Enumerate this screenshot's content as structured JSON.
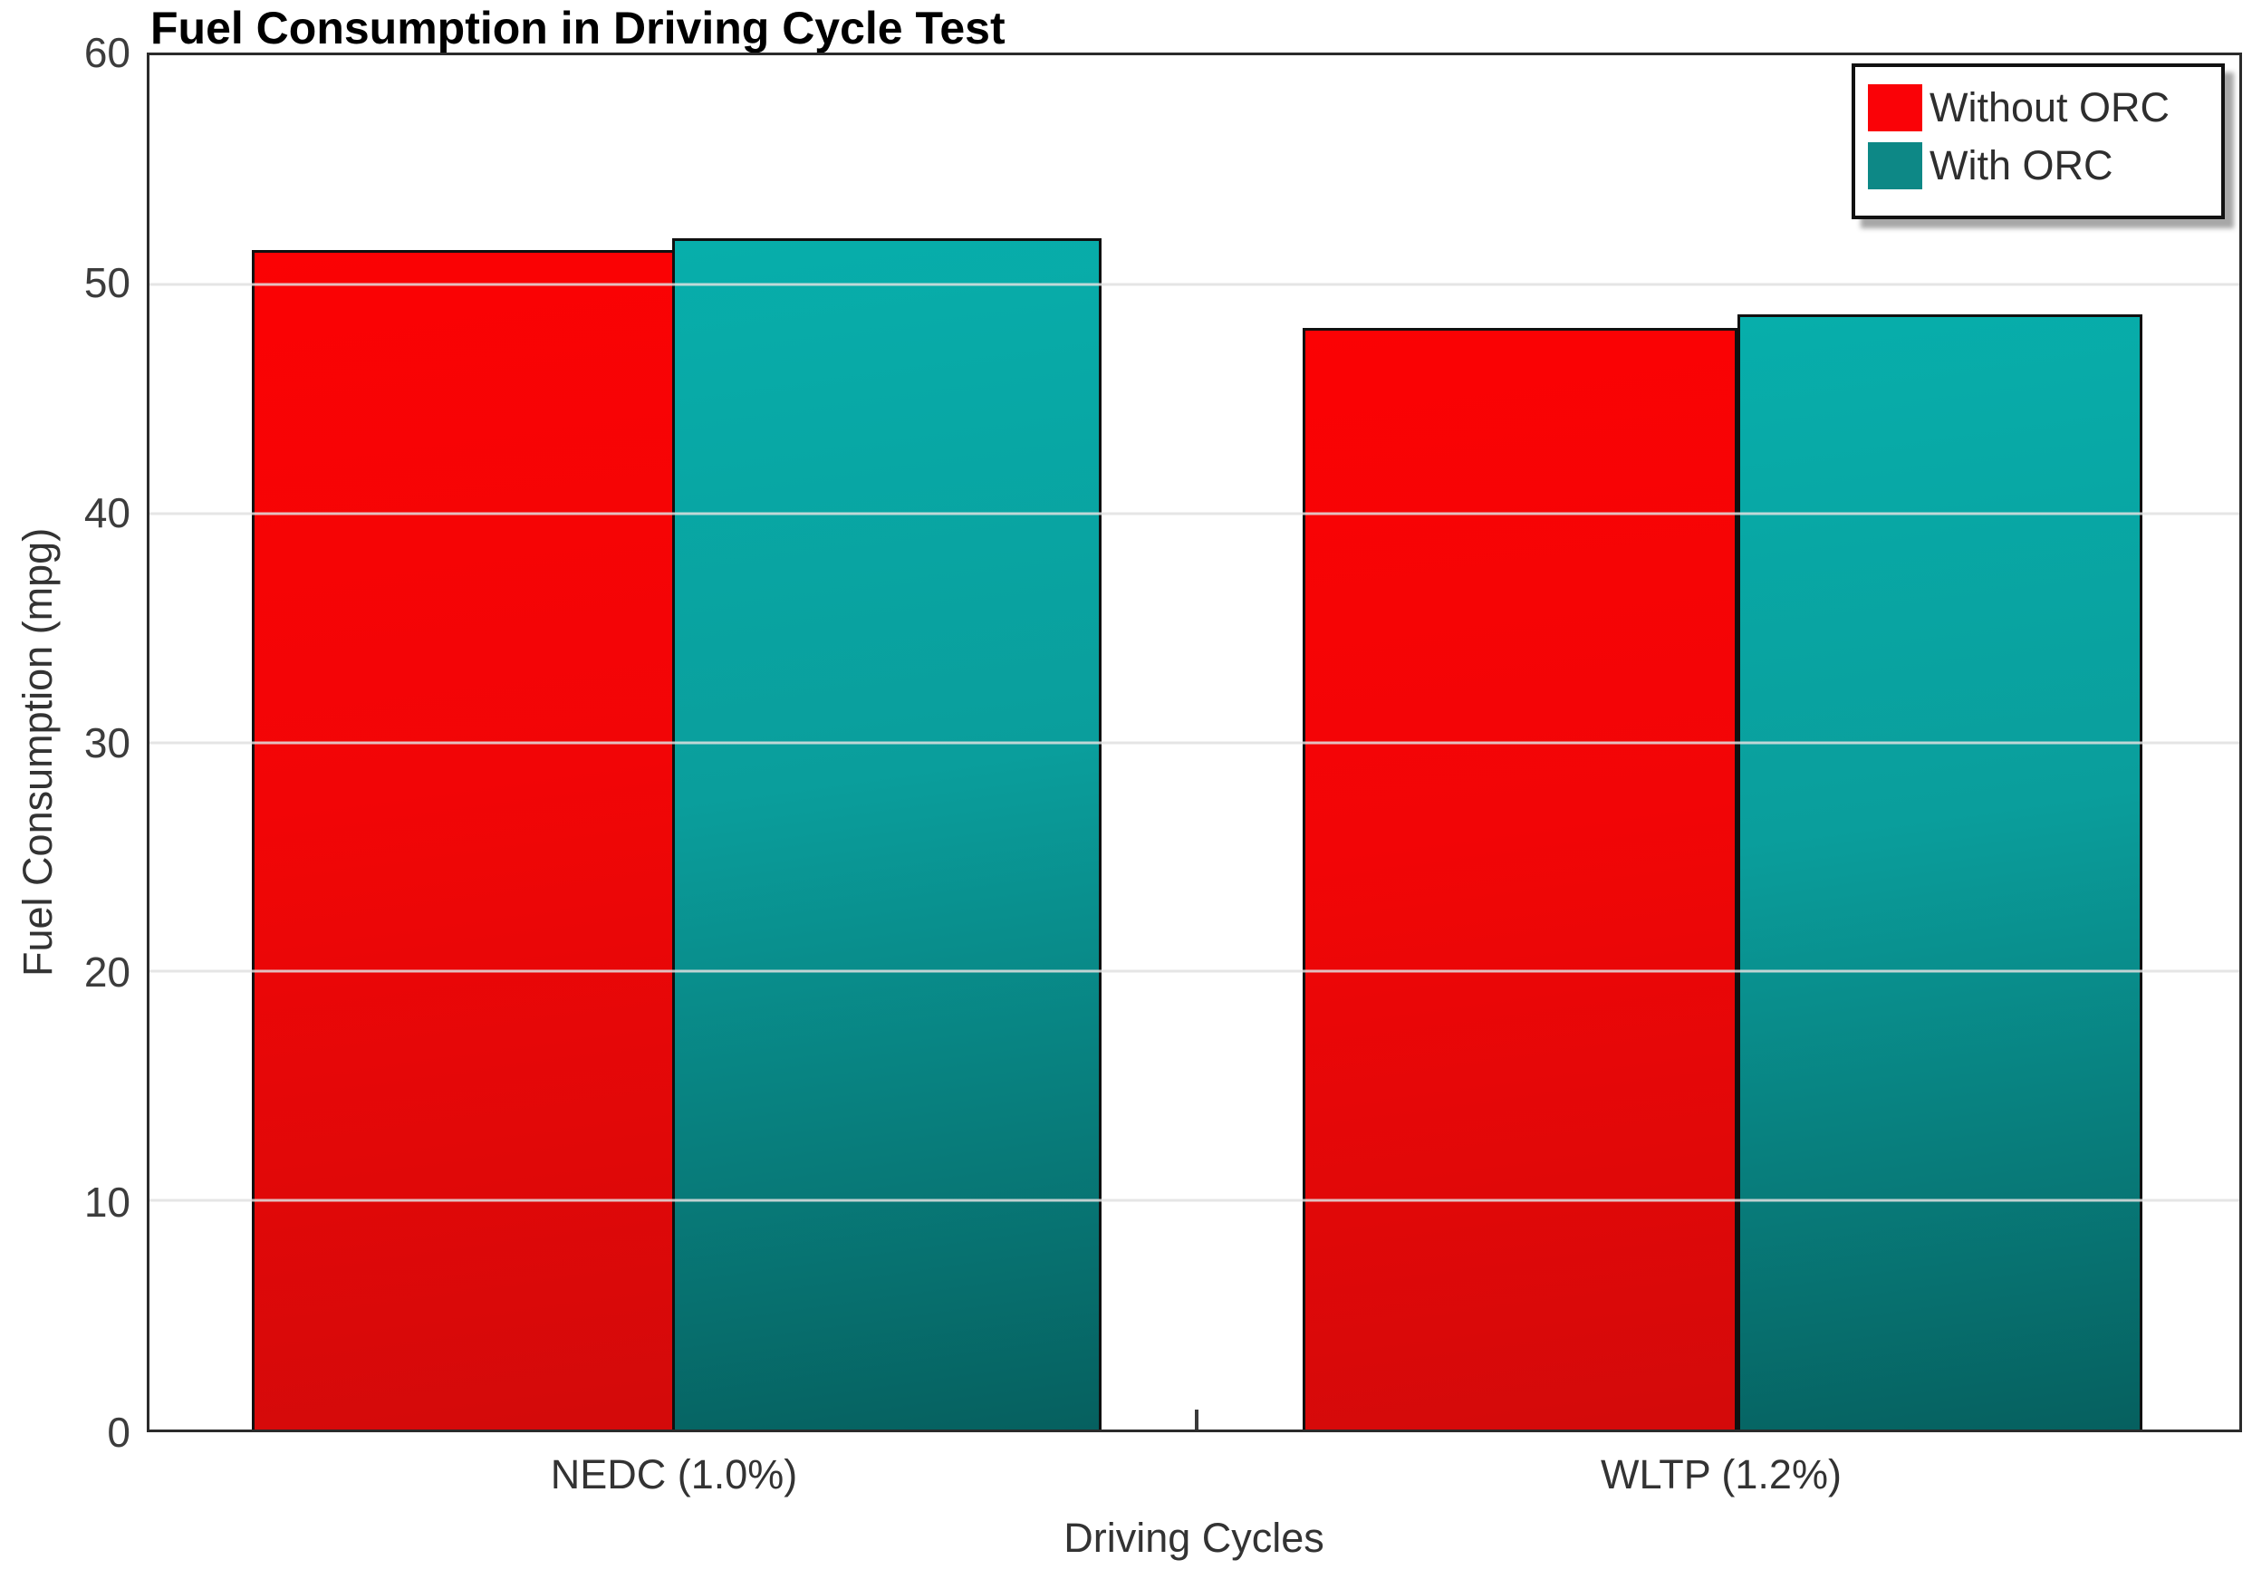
{
  "chart_data": {
    "type": "bar",
    "title": "Fuel Consumption in Driving Cycle Test",
    "xlabel": "Driving Cycles",
    "ylabel": "Fuel Consumption (mpg)",
    "categories": [
      "NEDC (1.0%)",
      "WLTP (1.2%)"
    ],
    "series": [
      {
        "name": "Without ORC",
        "values": [
          51.5,
          48.1
        ],
        "color_top": "#fb0204",
        "color_mid": "#f20506",
        "color_bottom": "#d30a0a",
        "legend_color": "#fa0207"
      },
      {
        "name": "With ORC",
        "values": [
          52.0,
          48.7
        ],
        "color_top": "#07aeab",
        "color_mid": "#0a9e9c",
        "color_bottom": "#06605f",
        "legend_color": "#0d8886"
      }
    ],
    "ylim": [
      0,
      60
    ],
    "yticks": [
      0,
      10,
      20,
      30,
      40,
      50,
      60
    ],
    "grid": true,
    "legend_position": "top-right",
    "bar_edge_color": "#101010"
  }
}
